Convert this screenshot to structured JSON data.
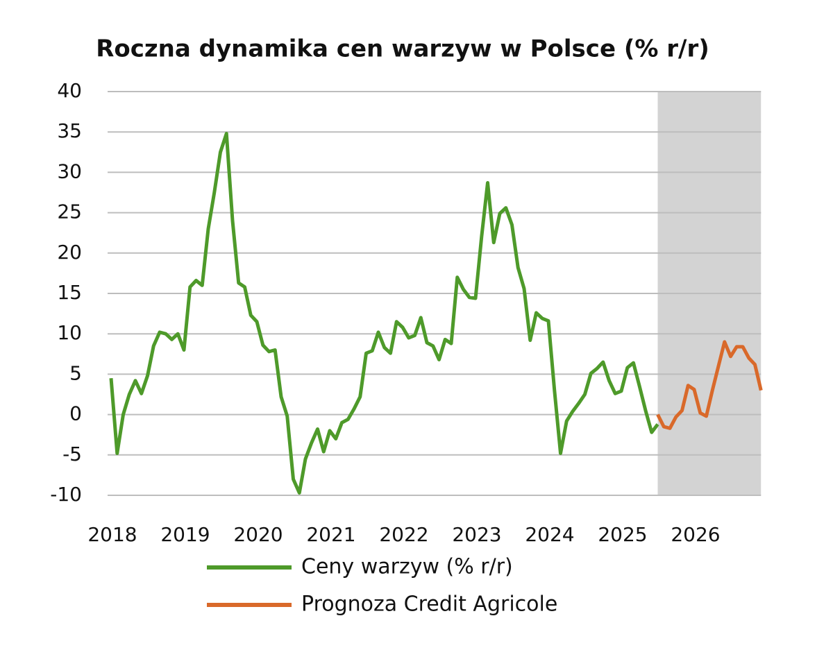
{
  "chart_data": {
    "type": "line",
    "title": "Roczna dynamika cen warzyw w Polsce (% r/r)",
    "categories": [
      "2018",
      null,
      null,
      null,
      null,
      null,
      null,
      null,
      null,
      null,
      null,
      null,
      "2019",
      null,
      null,
      null,
      null,
      null,
      null,
      null,
      null,
      null,
      null,
      null,
      "2020",
      null,
      null,
      null,
      null,
      null,
      null,
      null,
      null,
      null,
      null,
      null,
      "2021",
      null,
      null,
      null,
      null,
      null,
      null,
      null,
      null,
      null,
      null,
      null,
      "2022",
      null,
      null,
      null,
      null,
      null,
      null,
      null,
      null,
      null,
      null,
      null,
      "2023",
      null,
      null,
      null,
      null,
      null,
      null,
      null,
      null,
      null,
      null,
      null,
      "2024",
      null,
      null,
      null,
      null,
      null,
      null,
      null,
      null,
      null,
      null,
      null,
      "2025",
      null,
      null,
      null,
      null,
      null,
      null,
      null,
      null,
      null,
      null,
      null,
      "2026",
      null,
      null,
      null,
      null,
      null,
      null,
      null,
      null,
      null,
      null,
      null
    ],
    "series": [
      {
        "name": "Ceny warzyw (% r/r)",
        "color": "#4e9a2a",
        "values": [
          4.5,
          -4.8,
          0,
          2.5,
          4.2,
          2.6,
          4.8,
          8.5,
          10.2,
          10,
          9.3,
          10,
          8,
          15.8,
          16.6,
          16,
          23,
          27.5,
          32.5,
          34.8,
          24,
          16.3,
          15.8,
          12.3,
          11.5,
          8.6,
          7.8,
          8,
          2.2,
          -0.2,
          -8,
          -9.7,
          -5.5,
          -3.5,
          -1.8,
          -4.6,
          -2,
          -3,
          -1,
          -0.6,
          0.7,
          2.2,
          7.6,
          7.9,
          10.2,
          8.3,
          7.6,
          11.5,
          10.8,
          9.5,
          9.8,
          12,
          8.9,
          8.5,
          6.8,
          9.3,
          8.8,
          17,
          15.5,
          14.5,
          14.4,
          22,
          28.7,
          21.3,
          24.9,
          25.6,
          23.5,
          18.2,
          15.6,
          9.2,
          12.6,
          11.9,
          11.6,
          3,
          -4.8,
          -0.8,
          0.4,
          1.4,
          2.5,
          5.1,
          5.7,
          6.5,
          4.2,
          2.6,
          2.9,
          5.8,
          6.4,
          3.5,
          0.5,
          -2.2,
          -1.2,
          null,
          null,
          null,
          null,
          null,
          null,
          null,
          null,
          null,
          null,
          null,
          null,
          null,
          null,
          null,
          null,
          null
        ]
      },
      {
        "name": "Prognoza Credit Agricole",
        "color": "#d9692a",
        "values": [
          null,
          null,
          null,
          null,
          null,
          null,
          null,
          null,
          null,
          null,
          null,
          null,
          null,
          null,
          null,
          null,
          null,
          null,
          null,
          null,
          null,
          null,
          null,
          null,
          null,
          null,
          null,
          null,
          null,
          null,
          null,
          null,
          null,
          null,
          null,
          null,
          null,
          null,
          null,
          null,
          null,
          null,
          null,
          null,
          null,
          null,
          null,
          null,
          null,
          null,
          null,
          null,
          null,
          null,
          null,
          null,
          null,
          null,
          null,
          null,
          null,
          null,
          null,
          null,
          null,
          null,
          null,
          null,
          null,
          null,
          null,
          null,
          null,
          null,
          null,
          null,
          null,
          null,
          null,
          null,
          null,
          null,
          null,
          null,
          null,
          null,
          null,
          null,
          null,
          null,
          0,
          -1.5,
          -1.7,
          -0.3,
          0.5,
          3.6,
          3.1,
          0.2,
          -0.2,
          3,
          6,
          9,
          7.2,
          8.4,
          8.4,
          7,
          6.2,
          3
        ]
      }
    ],
    "ylim": [
      -10,
      40
    ],
    "yticks": [
      -10,
      -5,
      0,
      5,
      10,
      15,
      20,
      25,
      30,
      35,
      40
    ],
    "grid": true
  }
}
